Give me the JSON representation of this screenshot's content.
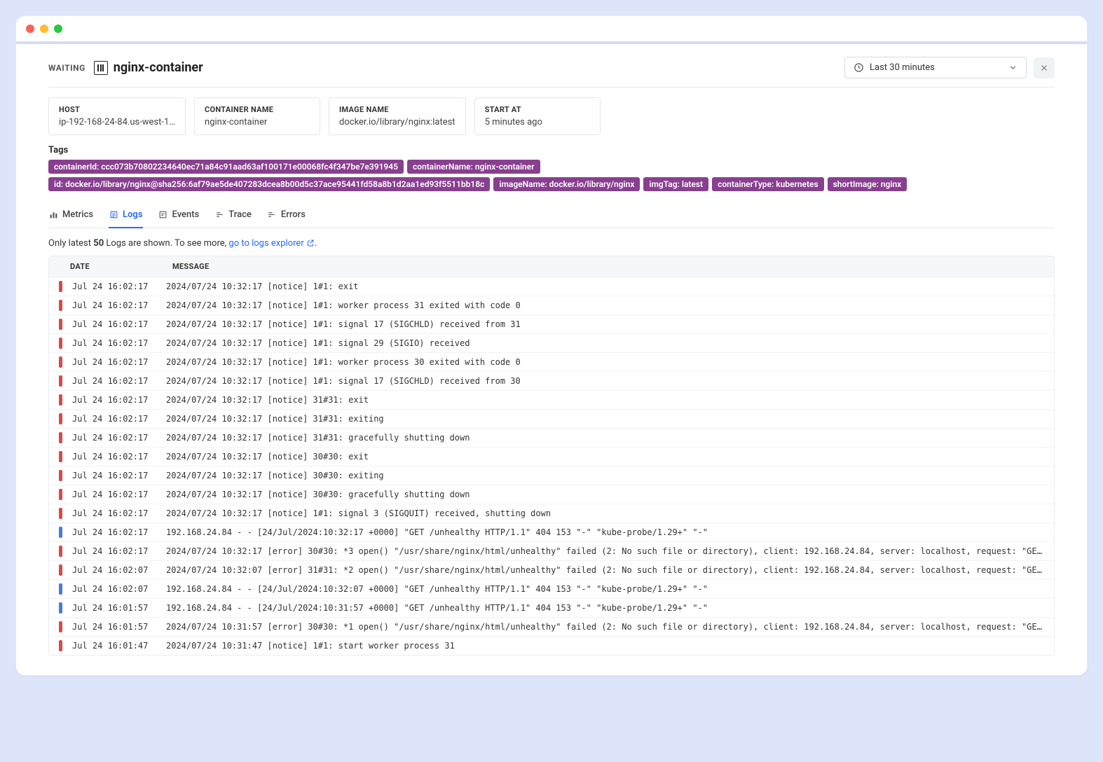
{
  "header": {
    "status": "WAITING",
    "title": "nginx-container",
    "time_range": "Last 30 minutes"
  },
  "cards": [
    {
      "label": "HOST",
      "value": "ip-192-168-24-84.us-west-1…"
    },
    {
      "label": "CONTAINER NAME",
      "value": "nginx-container"
    },
    {
      "label": "IMAGE NAME",
      "value": "docker.io/library/nginx:latest"
    },
    {
      "label": "START AT",
      "value": "5 minutes ago"
    }
  ],
  "tags_label": "Tags",
  "tags_row1": [
    "containerId: ccc073b70802234640ec71a84c91aad63af100171e00068fc4f347be7e391945",
    "containerName: nginx-container"
  ],
  "tags_row2": [
    "id: docker.io/library/nginx@sha256:6af79ae5de407283dcea8b00d5c37ace95441fd58a8b1d2aa1ed93f5511bb18c",
    "imageName: docker.io/library/nginx",
    "imgTag: latest",
    "containerType: kubernetes",
    "shortImage: nginx"
  ],
  "tabs": {
    "metrics": "Metrics",
    "logs": "Logs",
    "events": "Events",
    "trace": "Trace",
    "errors": "Errors"
  },
  "info": {
    "prefix": "Only latest ",
    "count": "50",
    "middle": " Logs are shown. To see more, ",
    "link": "go to logs explorer"
  },
  "log_columns": {
    "date": "DATE",
    "message": "MESSAGE"
  },
  "logs": [
    {
      "sev": "red",
      "date": "Jul 24 16:02:17",
      "msg": "2024/07/24 10:32:17 [notice] 1#1: exit"
    },
    {
      "sev": "red",
      "date": "Jul 24 16:02:17",
      "msg": "2024/07/24 10:32:17 [notice] 1#1: worker process 31 exited with code 0"
    },
    {
      "sev": "red",
      "date": "Jul 24 16:02:17",
      "msg": "2024/07/24 10:32:17 [notice] 1#1: signal 17 (SIGCHLD) received from 31"
    },
    {
      "sev": "red",
      "date": "Jul 24 16:02:17",
      "msg": "2024/07/24 10:32:17 [notice] 1#1: signal 29 (SIGIO) received"
    },
    {
      "sev": "red",
      "date": "Jul 24 16:02:17",
      "msg": "2024/07/24 10:32:17 [notice] 1#1: worker process 30 exited with code 0"
    },
    {
      "sev": "red",
      "date": "Jul 24 16:02:17",
      "msg": "2024/07/24 10:32:17 [notice] 1#1: signal 17 (SIGCHLD) received from 30"
    },
    {
      "sev": "red",
      "date": "Jul 24 16:02:17",
      "msg": "2024/07/24 10:32:17 [notice] 31#31: exit"
    },
    {
      "sev": "red",
      "date": "Jul 24 16:02:17",
      "msg": "2024/07/24 10:32:17 [notice] 31#31: exiting"
    },
    {
      "sev": "red",
      "date": "Jul 24 16:02:17",
      "msg": "2024/07/24 10:32:17 [notice] 31#31: gracefully shutting down"
    },
    {
      "sev": "red",
      "date": "Jul 24 16:02:17",
      "msg": "2024/07/24 10:32:17 [notice] 30#30: exit"
    },
    {
      "sev": "red",
      "date": "Jul 24 16:02:17",
      "msg": "2024/07/24 10:32:17 [notice] 30#30: exiting"
    },
    {
      "sev": "red",
      "date": "Jul 24 16:02:17",
      "msg": "2024/07/24 10:32:17 [notice] 30#30: gracefully shutting down"
    },
    {
      "sev": "red",
      "date": "Jul 24 16:02:17",
      "msg": "2024/07/24 10:32:17 [notice] 1#1: signal 3 (SIGQUIT) received, shutting down"
    },
    {
      "sev": "blue",
      "date": "Jul 24 16:02:17",
      "msg": "192.168.24.84 - - [24/Jul/2024:10:32:17 +0000] \"GET /unhealthy HTTP/1.1\" 404 153 \"-\" \"kube-probe/1.29+\" \"-\""
    },
    {
      "sev": "red",
      "date": "Jul 24 16:02:17",
      "msg": "2024/07/24 10:32:17 [error] 30#30: *3 open() \"/usr/share/nginx/html/unhealthy\" failed (2: No such file or directory), client: 192.168.24.84, server: localhost, request: \"GE…"
    },
    {
      "sev": "red",
      "date": "Jul 24 16:02:07",
      "msg": "2024/07/24 10:32:07 [error] 31#31: *2 open() \"/usr/share/nginx/html/unhealthy\" failed (2: No such file or directory), client: 192.168.24.84, server: localhost, request: \"GE…"
    },
    {
      "sev": "blue",
      "date": "Jul 24 16:02:07",
      "msg": "192.168.24.84 - - [24/Jul/2024:10:32:07 +0000] \"GET /unhealthy HTTP/1.1\" 404 153 \"-\" \"kube-probe/1.29+\" \"-\""
    },
    {
      "sev": "blue",
      "date": "Jul 24 16:01:57",
      "msg": "192.168.24.84 - - [24/Jul/2024:10:31:57 +0000] \"GET /unhealthy HTTP/1.1\" 404 153 \"-\" \"kube-probe/1.29+\" \"-\""
    },
    {
      "sev": "red",
      "date": "Jul 24 16:01:57",
      "msg": "2024/07/24 10:31:57 [error] 30#30: *1 open() \"/usr/share/nginx/html/unhealthy\" failed (2: No such file or directory), client: 192.168.24.84, server: localhost, request: \"GE…"
    },
    {
      "sev": "red",
      "date": "Jul 24 16:01:47",
      "msg": "2024/07/24 10:31:47 [notice] 1#1: start worker process 31"
    }
  ]
}
